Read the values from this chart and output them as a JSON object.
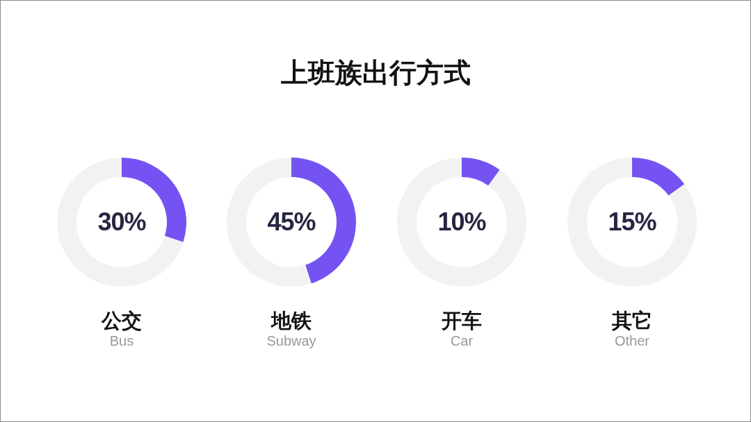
{
  "chart_data": [
    {
      "type": "donut",
      "title": "上班族出行方式",
      "xlabel": "公交",
      "categories": [
        null,
        null
      ],
      "values": [
        30,
        70
      ],
      "colors": [
        "#7552f2",
        "#f2f2f2"
      ],
      "annotations": [
        "30%",
        "Bus"
      ]
    },
    {
      "type": "donut",
      "xlabel": "地铁",
      "categories": [
        null,
        null
      ],
      "values": [
        45,
        55
      ],
      "colors": [
        "#7552f2",
        "#f2f2f2"
      ],
      "annotations": [
        "45%",
        "Subway"
      ]
    },
    {
      "type": "donut",
      "xlabel": "开车",
      "categories": [
        null,
        null
      ],
      "values": [
        10,
        90
      ],
      "colors": [
        "#7552f2",
        "#f2f2f2"
      ],
      "annotations": [
        "10%",
        "Car"
      ]
    },
    {
      "type": "donut",
      "xlabel": "其它",
      "categories": [
        null,
        null
      ],
      "values": [
        15,
        85
      ],
      "colors": [
        "#7552f2",
        "#f2f2f2"
      ],
      "annotations": [
        "15%",
        "Other"
      ]
    }
  ]
}
